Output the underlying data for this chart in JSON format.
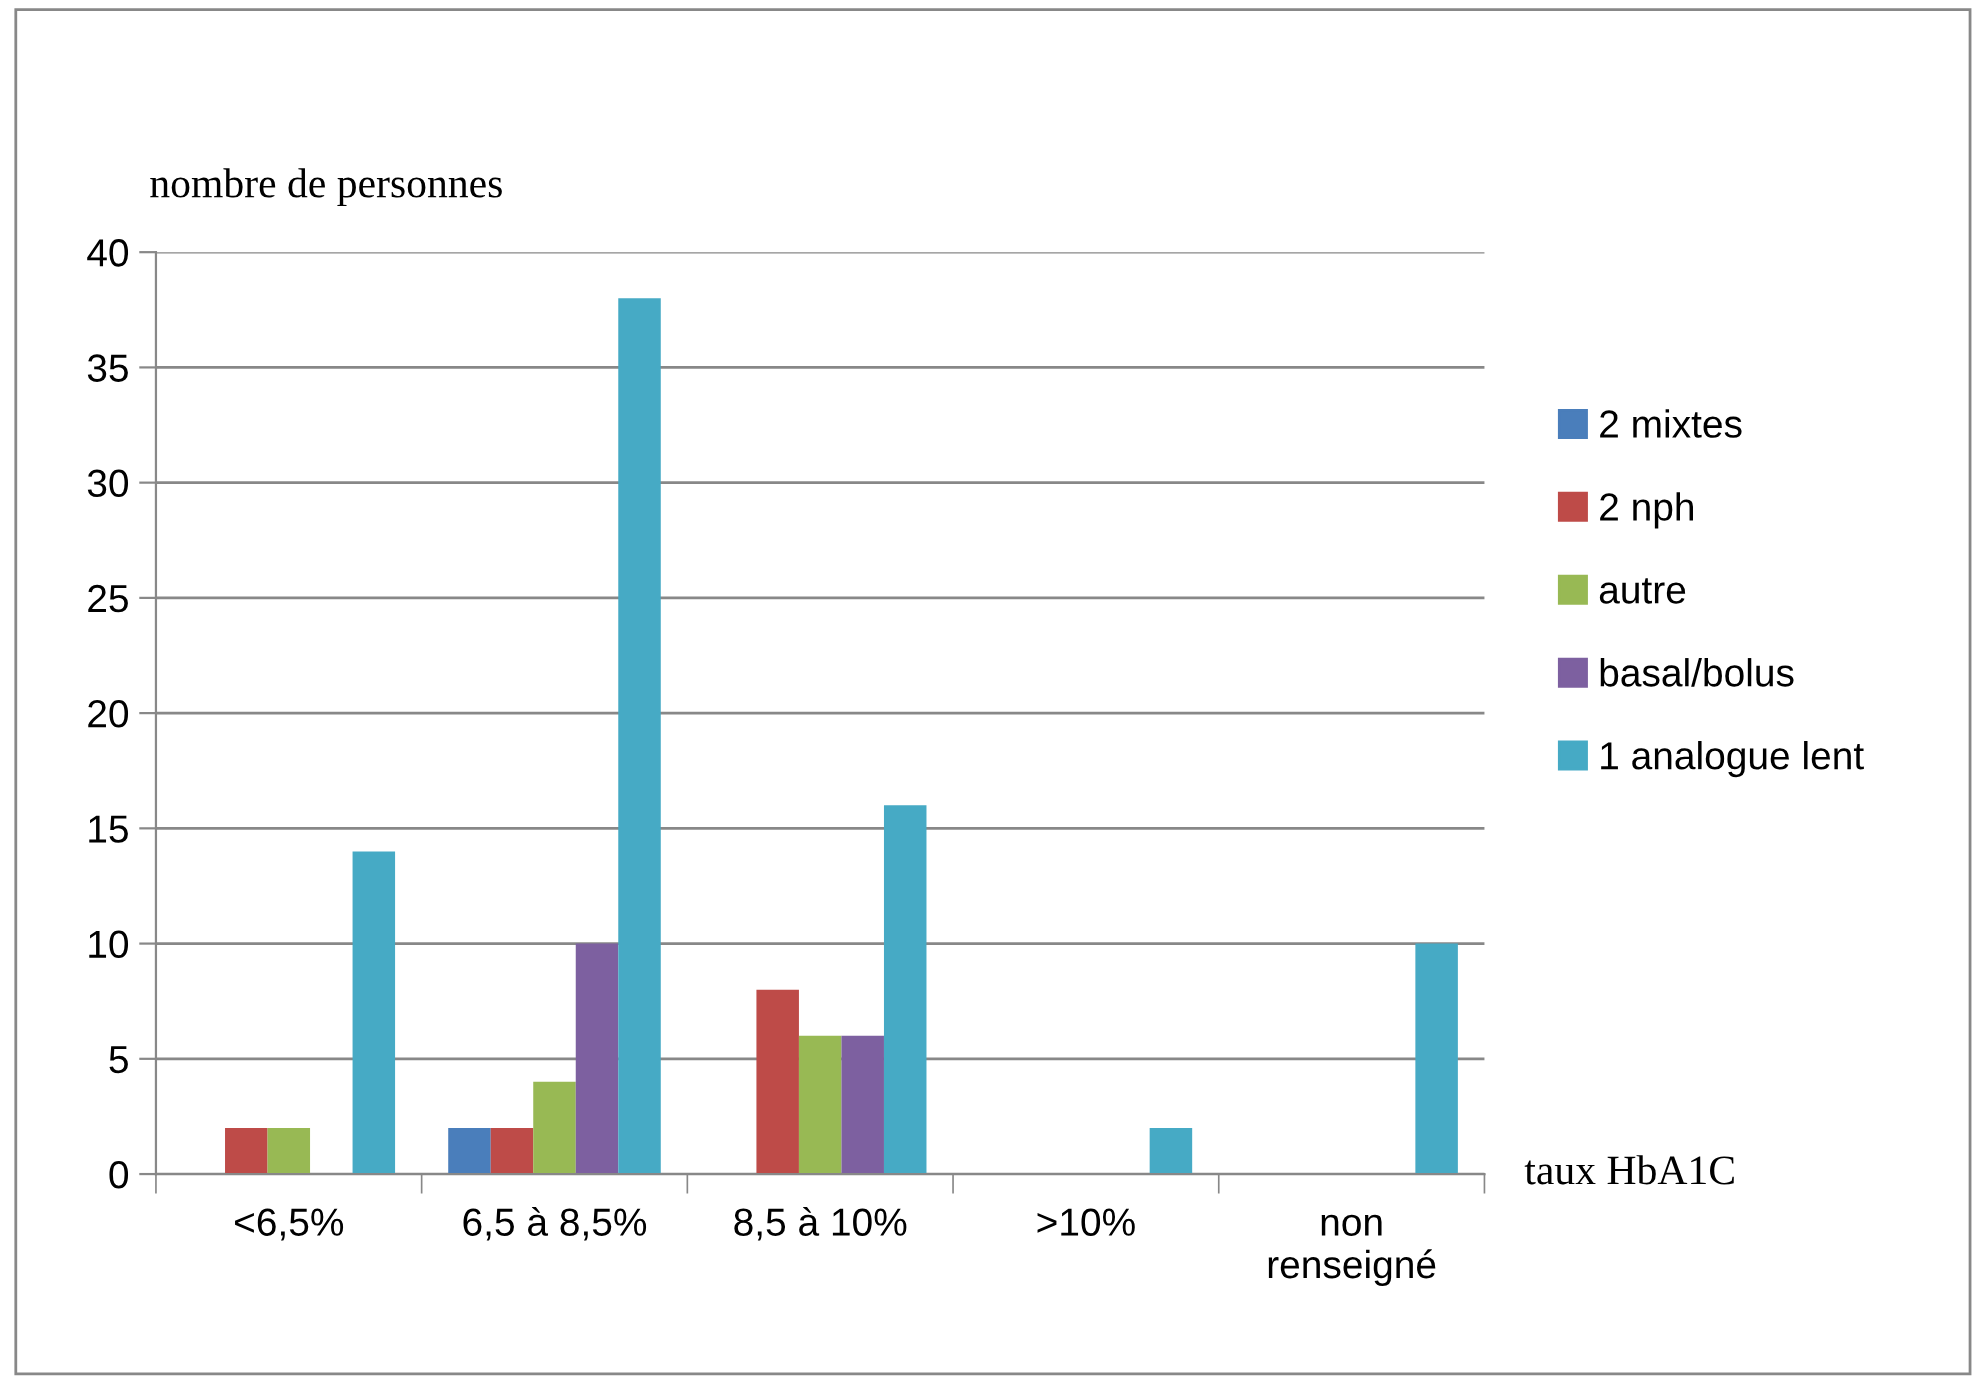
{
  "chart_data": {
    "type": "bar",
    "ylabel": "nombre de personnes",
    "xlabel": "taux HbA1C",
    "categories": [
      "<6,5%",
      "6,5 à 8,5%",
      "8,5 à 10%",
      ">10%",
      "non\nrenseigné"
    ],
    "series": [
      {
        "name": "2 mixtes",
        "color": "#4a7ebb",
        "values": [
          0,
          2,
          0,
          0,
          0
        ]
      },
      {
        "name": "2 nph",
        "color": "#be4b48",
        "values": [
          2,
          2,
          8,
          0,
          0
        ]
      },
      {
        "name": "autre",
        "color": "#98b954",
        "values": [
          2,
          4,
          6,
          0,
          0
        ]
      },
      {
        "name": "basal/bolus",
        "color": "#7d60a0",
        "values": [
          0,
          10,
          6,
          0,
          0
        ]
      },
      {
        "name": "1 analogue lent",
        "color": "#46aac5",
        "values": [
          14,
          38,
          16,
          2,
          10
        ]
      }
    ],
    "ylim": [
      0,
      40
    ],
    "yticks": [
      0,
      5,
      10,
      15,
      20,
      25,
      30,
      35,
      40
    ],
    "grid": "y",
    "legend": "right"
  }
}
